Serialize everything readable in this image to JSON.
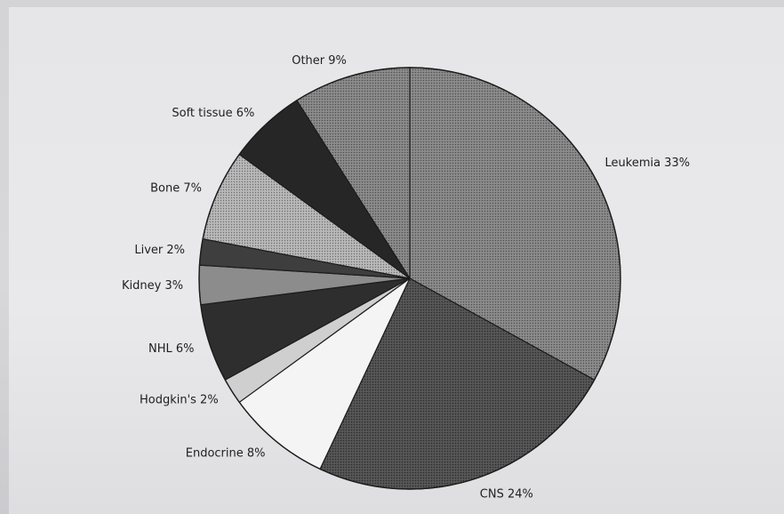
{
  "chart_data": {
    "type": "pie",
    "start_angle_deg": -90,
    "direction": "clockwise",
    "slices": [
      {
        "label": "Leukemia 33%",
        "value": 33,
        "color": "#8f8f8f",
        "pattern": "dots"
      },
      {
        "label": "CNS 24%",
        "value": 24,
        "color": "#4e4e4e",
        "pattern": "dots"
      },
      {
        "label": "Endocrine 8%",
        "value": 8,
        "color": "#f4f4f4",
        "pattern": "none"
      },
      {
        "label": "Hodgkin's 2%",
        "value": 2,
        "color": "#cfcfcf",
        "pattern": "none"
      },
      {
        "label": "NHL 6%",
        "value": 6,
        "color": "#2e2e2e",
        "pattern": "none"
      },
      {
        "label": "Kidney 3%",
        "value": 3,
        "color": "#8c8c8c",
        "pattern": "none"
      },
      {
        "label": "Liver 2%",
        "value": 2,
        "color": "#3e3e3e",
        "pattern": "none"
      },
      {
        "label": "Bone 7%",
        "value": 7,
        "color": "#c4c4c4",
        "pattern": "dots"
      },
      {
        "label": "Soft tissue 6%",
        "value": 6,
        "color": "#262626",
        "pattern": "none"
      },
      {
        "label": "Other 9%",
        "value": 9,
        "color": "#9a9a9a",
        "pattern": "dots"
      }
    ]
  }
}
